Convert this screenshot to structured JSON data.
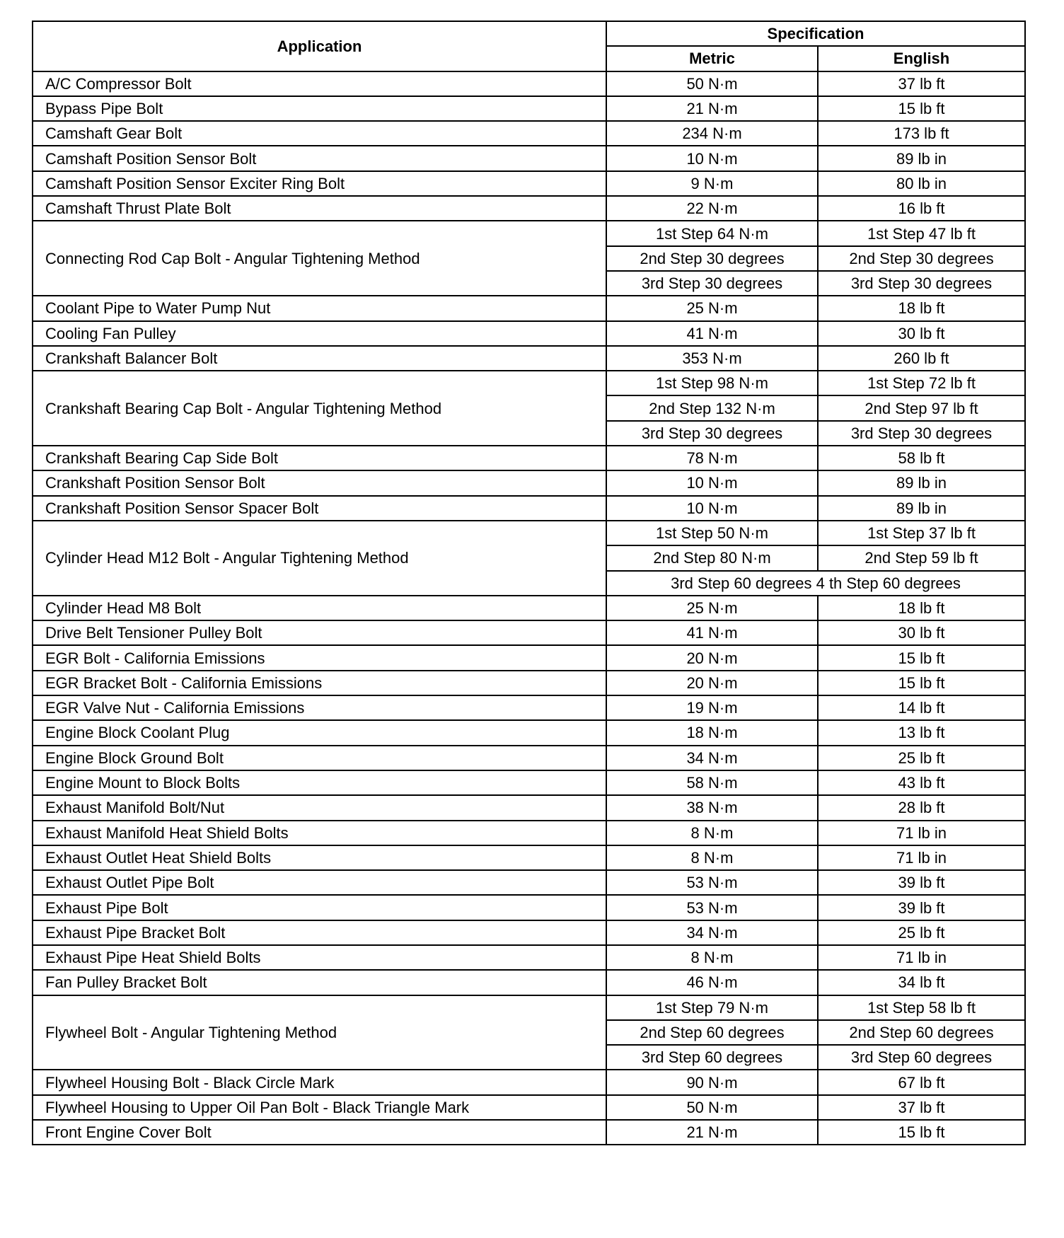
{
  "header": {
    "application": "Application",
    "specification": "Specification",
    "metric": "Metric",
    "english": "English"
  },
  "rows": [
    {
      "application": "A/C Compressor Bolt",
      "steps": [
        {
          "metric": "50 N·m",
          "english": "37 lb ft"
        }
      ]
    },
    {
      "application": "Bypass Pipe Bolt",
      "steps": [
        {
          "metric": "21 N·m",
          "english": "15 lb ft"
        }
      ]
    },
    {
      "application": "Camshaft Gear Bolt",
      "steps": [
        {
          "metric": "234 N·m",
          "english": "173 lb ft"
        }
      ]
    },
    {
      "application": "Camshaft Position Sensor Bolt",
      "steps": [
        {
          "metric": "10 N·m",
          "english": "89 lb in"
        }
      ]
    },
    {
      "application": "Camshaft Position Sensor Exciter Ring Bolt",
      "steps": [
        {
          "metric": "9 N·m",
          "english": "80 lb in"
        }
      ]
    },
    {
      "application": "Camshaft Thrust Plate Bolt",
      "steps": [
        {
          "metric": "22 N·m",
          "english": "16 lb ft"
        }
      ]
    },
    {
      "application": "Connecting Rod Cap Bolt - Angular Tightening Method",
      "steps": [
        {
          "metric": "1st Step 64 N·m",
          "english": "1st Step 47 lb ft"
        },
        {
          "metric": "2nd Step 30 degrees",
          "english": "2nd Step 30 degrees"
        },
        {
          "metric": "3rd Step 30 degrees",
          "english": "3rd Step 30 degrees"
        }
      ]
    },
    {
      "application": "Coolant Pipe to Water Pump Nut",
      "steps": [
        {
          "metric": "25 N·m",
          "english": "18 lb ft"
        }
      ]
    },
    {
      "application": "Cooling Fan Pulley",
      "steps": [
        {
          "metric": "41 N·m",
          "english": "30 lb ft"
        }
      ]
    },
    {
      "application": "Crankshaft Balancer Bolt",
      "steps": [
        {
          "metric": "353 N·m",
          "english": "260 lb ft"
        }
      ]
    },
    {
      "application": "Crankshaft Bearing Cap Bolt - Angular Tightening Method",
      "steps": [
        {
          "metric": "1st Step 98 N·m",
          "english": "1st Step 72 lb ft"
        },
        {
          "metric": "2nd Step 132 N·m",
          "english": "2nd Step 97 lb ft"
        },
        {
          "metric": "3rd Step 30 degrees",
          "english": "3rd Step 30 degrees"
        }
      ]
    },
    {
      "application": "Crankshaft Bearing Cap Side Bolt",
      "steps": [
        {
          "metric": "78 N·m",
          "english": "58 lb ft"
        }
      ]
    },
    {
      "application": "Crankshaft Position Sensor Bolt",
      "steps": [
        {
          "metric": "10 N·m",
          "english": "89 lb in"
        }
      ]
    },
    {
      "application": "Crankshaft Position Sensor Spacer Bolt",
      "steps": [
        {
          "metric": "10 N·m",
          "english": "89 lb in"
        }
      ]
    },
    {
      "application": "Cylinder Head M12 Bolt - Angular Tightening Method",
      "steps": [
        {
          "metric": "1st Step 50 N·m",
          "english": "1st Step 37 lb ft"
        },
        {
          "metric": "2nd Step 80 N·m",
          "english": "2nd Step 59 lb ft"
        },
        {
          "combined": "3rd Step 60 degrees  4 th Step 60 degrees"
        }
      ]
    },
    {
      "application": "Cylinder Head M8 Bolt",
      "steps": [
        {
          "metric": "25 N·m",
          "english": "18 lb ft"
        }
      ]
    },
    {
      "application": "Drive Belt Tensioner Pulley Bolt",
      "steps": [
        {
          "metric": "41 N·m",
          "english": "30 lb ft"
        }
      ]
    },
    {
      "application": "EGR Bolt - California Emissions",
      "steps": [
        {
          "metric": "20 N·m",
          "english": "15 lb ft"
        }
      ]
    },
    {
      "application": "EGR Bracket Bolt - California Emissions",
      "steps": [
        {
          "metric": "20 N·m",
          "english": "15 lb ft"
        }
      ]
    },
    {
      "application": "EGR Valve Nut - California Emissions",
      "steps": [
        {
          "metric": "19 N·m",
          "english": "14 lb ft"
        }
      ]
    },
    {
      "application": "Engine Block Coolant Plug",
      "steps": [
        {
          "metric": "18 N·m",
          "english": "13 lb ft"
        }
      ]
    },
    {
      "application": "Engine Block Ground Bolt",
      "steps": [
        {
          "metric": "34 N·m",
          "english": "25 lb ft"
        }
      ]
    },
    {
      "application": "Engine Mount to Block Bolts",
      "steps": [
        {
          "metric": "58 N·m",
          "english": "43 lb ft"
        }
      ]
    },
    {
      "application": "Exhaust Manifold Bolt/Nut",
      "steps": [
        {
          "metric": "38 N·m",
          "english": "28 lb ft"
        }
      ]
    },
    {
      "application": "Exhaust Manifold Heat Shield Bolts",
      "steps": [
        {
          "metric": "8 N·m",
          "english": "71 lb in"
        }
      ]
    },
    {
      "application": "Exhaust Outlet Heat Shield Bolts",
      "steps": [
        {
          "metric": "8 N·m",
          "english": "71 lb in"
        }
      ]
    },
    {
      "application": "Exhaust Outlet Pipe Bolt",
      "steps": [
        {
          "metric": "53 N·m",
          "english": "39 lb ft"
        }
      ]
    },
    {
      "application": "Exhaust Pipe Bolt",
      "steps": [
        {
          "metric": "53 N·m",
          "english": "39 lb ft"
        }
      ]
    },
    {
      "application": "Exhaust Pipe Bracket Bolt",
      "steps": [
        {
          "metric": "34 N·m",
          "english": "25 lb ft"
        }
      ]
    },
    {
      "application": "Exhaust Pipe Heat Shield Bolts",
      "steps": [
        {
          "metric": "8 N·m",
          "english": "71 lb in"
        }
      ]
    },
    {
      "application": "Fan Pulley Bracket Bolt",
      "steps": [
        {
          "metric": "46 N·m",
          "english": "34 lb ft"
        }
      ]
    },
    {
      "application": "Flywheel Bolt - Angular Tightening Method",
      "steps": [
        {
          "metric": "1st Step 79 N·m",
          "english": "1st Step 58 lb ft"
        },
        {
          "metric": "2nd Step 60 degrees",
          "english": "2nd Step 60 degrees"
        },
        {
          "metric": "3rd Step 60 degrees",
          "english": "3rd Step 60 degrees"
        }
      ]
    },
    {
      "application": "Flywheel Housing Bolt - Black Circle Mark",
      "steps": [
        {
          "metric": "90 N·m",
          "english": "67 lb ft"
        }
      ]
    },
    {
      "application": "Flywheel Housing to Upper Oil Pan Bolt - Black Triangle Mark",
      "steps": [
        {
          "metric": "50 N·m",
          "english": "37 lb ft"
        }
      ]
    },
    {
      "application": "Front Engine Cover Bolt",
      "steps": [
        {
          "metric": "21 N·m",
          "english": "15 lb ft"
        }
      ]
    }
  ]
}
